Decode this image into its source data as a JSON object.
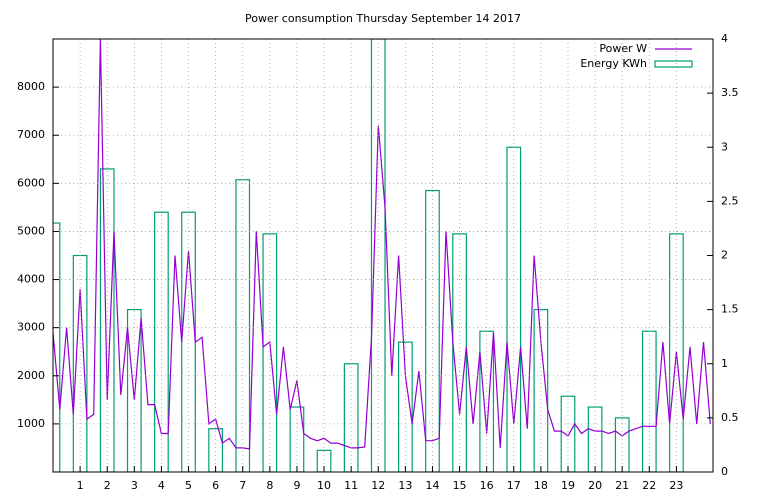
{
  "chart_data": {
    "type": "combo",
    "title": "Power consumption Thursday September 14 2017",
    "xlim": [
      0,
      24.35
    ],
    "xticks": [
      1,
      2,
      3,
      4,
      5,
      6,
      7,
      8,
      9,
      10,
      11,
      12,
      13,
      14,
      15,
      16,
      17,
      18,
      19,
      20,
      21,
      22,
      23
    ],
    "ylim": [
      0,
      9000
    ],
    "yticks": [
      1000,
      2000,
      3000,
      4000,
      5000,
      6000,
      7000,
      8000
    ],
    "y2lim": [
      0,
      4
    ],
    "y2ticks": [
      0,
      0.5,
      1,
      1.5,
      2,
      2.5,
      3,
      3.5,
      4
    ],
    "grid": true,
    "legend": "top-right",
    "series": [
      {
        "name": "Power W",
        "color": "#9400d3",
        "type": "line",
        "x": [
          0,
          0.25,
          0.5,
          0.75,
          1,
          1.25,
          1.5,
          1.75,
          2,
          2.25,
          2.5,
          2.75,
          3,
          3.25,
          3.5,
          3.75,
          4,
          4.25,
          4.5,
          4.75,
          5,
          5.25,
          5.5,
          5.75,
          6,
          6.25,
          6.5,
          6.75,
          7,
          7.25,
          7.5,
          7.75,
          8,
          8.25,
          8.5,
          8.75,
          9,
          9.25,
          9.5,
          9.75,
          10,
          10.25,
          10.5,
          10.75,
          11,
          11.25,
          11.5,
          11.75,
          12,
          12.25,
          12.5,
          12.75,
          13,
          13.25,
          13.5,
          13.75,
          14,
          14.25,
          14.5,
          14.75,
          15,
          15.25,
          15.5,
          15.75,
          16,
          16.25,
          16.5,
          16.75,
          17,
          17.25,
          17.5,
          17.75,
          18,
          18.25,
          18.5,
          18.75,
          19,
          19.25,
          19.5,
          19.75,
          20,
          20.25,
          20.5,
          20.75,
          21,
          21.25,
          21.5,
          21.75,
          22,
          22.25,
          22.5,
          22.75,
          23,
          23.25,
          23.5,
          23.75,
          24,
          24.25
        ],
        "values": [
          2900,
          1300,
          3000,
          1200,
          3800,
          1100,
          1200,
          9000,
          1500,
          5000,
          1600,
          3000,
          1500,
          3200,
          1400,
          1400,
          800,
          800,
          4500,
          2700,
          4600,
          2700,
          2800,
          1000,
          1100,
          600,
          700,
          500,
          500,
          480,
          5000,
          2600,
          2700,
          1200,
          2600,
          1300,
          1900,
          800,
          700,
          650,
          700,
          600,
          600,
          550,
          500,
          500,
          520,
          2800,
          7200,
          5500,
          2000,
          4500,
          2000,
          1000,
          2100,
          650,
          650,
          700,
          5000,
          2700,
          1200,
          2600,
          1000,
          2500,
          800,
          2900,
          500,
          2700,
          1000,
          2600,
          900,
          4500,
          2700,
          1300,
          850,
          850,
          750,
          1000,
          800,
          900,
          850,
          850,
          800,
          850,
          750,
          850,
          900,
          950,
          950,
          950,
          2700,
          1000,
          2500,
          1100,
          2600,
          1000,
          2700,
          1000
        ]
      },
      {
        "name": "Energy KWh",
        "color": "#009e73",
        "type": "bar",
        "axis": "y2",
        "x": [
          0,
          1,
          2,
          3,
          4,
          5,
          6,
          7,
          8,
          9,
          10,
          11,
          12,
          13,
          14,
          15,
          16,
          17,
          18,
          19,
          20,
          21,
          22,
          23
        ],
        "values": [
          2.3,
          2.0,
          2.8,
          1.5,
          2.4,
          2.4,
          0.4,
          2.7,
          2.2,
          0.6,
          0.2,
          1.0,
          4.0,
          1.2,
          2.6,
          2.2,
          1.3,
          3.0,
          1.5,
          0.7,
          0.6,
          0.5,
          1.3,
          2.2
        ]
      }
    ]
  }
}
